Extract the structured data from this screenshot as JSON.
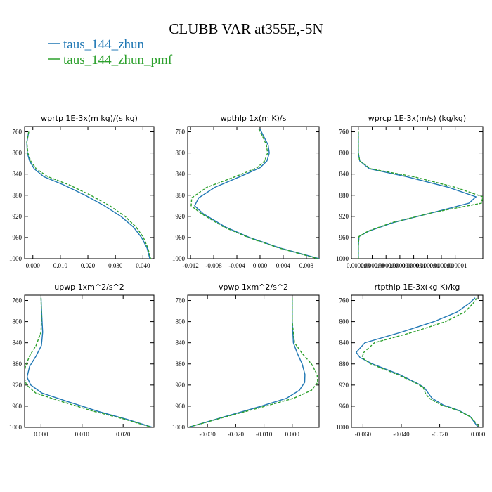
{
  "figure": {
    "title": "CLUBB VAR at355E,-5N",
    "legend": [
      {
        "label": "taus_144_zhun",
        "color": "#1f77b4"
      },
      {
        "label": "taus_144_zhun_pmf",
        "color": "#2ca02c"
      }
    ]
  },
  "chart_data": [
    {
      "type": "line",
      "title": "wprtp   1E-3x(m kg)/(s kg)",
      "xlim": [
        -0.003,
        0.044
      ],
      "ylim": [
        1000,
        750
      ],
      "xticks": [
        0.0,
        0.01,
        0.02,
        0.03,
        0.04
      ],
      "xtick_labels": [
        "0.000",
        "0.010",
        "0.020",
        "0.030",
        "0.040"
      ],
      "yticks": [
        760,
        800,
        840,
        880,
        920,
        960,
        1000
      ],
      "ytick_labels": [
        "760",
        "800",
        "840",
        "880",
        "920",
        "960",
        "1000"
      ],
      "y": [
        760,
        780,
        800,
        815,
        830,
        845,
        860,
        880,
        900,
        920,
        940,
        960,
        980,
        1000
      ],
      "series": [
        {
          "name": "taus_144_zhun",
          "color": "#1f77b4",
          "dash": false,
          "x": [
            -0.0015,
            -0.0022,
            -0.002,
            -0.0012,
            0.0005,
            0.004,
            0.011,
            0.019,
            0.026,
            0.032,
            0.0365,
            0.0395,
            0.0415,
            0.0425
          ]
        },
        {
          "name": "taus_144_zhun_pmf",
          "color": "#2ca02c",
          "dash": true,
          "x": [
            -0.0015,
            -0.0022,
            -0.0018,
            -0.0008,
            0.0012,
            0.0055,
            0.013,
            0.021,
            0.028,
            0.0335,
            0.0375,
            0.0402,
            0.0418,
            0.0428
          ]
        }
      ]
    },
    {
      "type": "line",
      "title": "wpthlp   1x(m K)/s",
      "xlim": [
        -0.0125,
        0.0102
      ],
      "ylim": [
        1000,
        750
      ],
      "xticks": [
        -0.012,
        -0.008,
        -0.004,
        0.0,
        0.004,
        0.008
      ],
      "xtick_labels": [
        "-0.012",
        "-0.008",
        "-0.004",
        "0.000",
        "0.004",
        "0.008"
      ],
      "yticks": [
        760,
        800,
        840,
        880,
        920,
        960,
        1000
      ],
      "ytick_labels": [
        "760",
        "800",
        "840",
        "880",
        "920",
        "960",
        "1000"
      ],
      "y": [
        755,
        770,
        785,
        800,
        815,
        828,
        845,
        865,
        885,
        900,
        915,
        940,
        960,
        980,
        1000
      ],
      "series": [
        {
          "name": "taus_144_zhun",
          "color": "#1f77b4",
          "dash": false,
          "x": [
            0.0,
            0.0007,
            0.0014,
            0.0016,
            0.0012,
            0.0,
            -0.0035,
            -0.0078,
            -0.0106,
            -0.0113,
            -0.0098,
            -0.006,
            -0.0018,
            0.0035,
            0.0102
          ]
        },
        {
          "name": "taus_144_zhun_pmf",
          "color": "#2ca02c",
          "dash": true,
          "x": [
            -0.0002,
            0.0005,
            0.0011,
            0.0013,
            0.0008,
            -0.0005,
            -0.0043,
            -0.0092,
            -0.0118,
            -0.0119,
            -0.0101,
            -0.0063,
            -0.002,
            0.0033,
            0.01
          ]
        }
      ]
    },
    {
      "type": "line",
      "title": "wprcp   1E-3x(m/s) (kg/kg)",
      "xlim": [
        -1e-07,
        1.8e-06
      ],
      "ylim": [
        1000,
        750
      ],
      "xticks": [
        0.0,
        2e-07,
        4e-07,
        6e-07,
        8e-07,
        1e-06,
        1.2e-06,
        1.4e-06
      ],
      "xtick_labels": [
        "0.000000",
        "0.000000",
        "0.000000",
        "0.000000",
        "0.000001",
        "0.000001",
        "0.000001",
        "0.000001"
      ],
      "yticks": [
        760,
        800,
        840,
        880,
        920,
        960,
        1000
      ],
      "ytick_labels": [
        "760",
        "800",
        "840",
        "880",
        "920",
        "960",
        "1000"
      ],
      "y": [
        760,
        800,
        815,
        830,
        845,
        865,
        883,
        895,
        912,
        932,
        948,
        958,
        975,
        1000
      ],
      "series": [
        {
          "name": "taus_144_zhun",
          "color": "#1f77b4",
          "dash": false,
          "x": [
            0.0,
            0.0,
            2e-08,
            1.6e-07,
            7e-07,
            1.3e-06,
            1.7e-06,
            1.6e-06,
            1.1e-06,
            5e-07,
            1.5e-07,
            1e-08,
            0.0,
            0.0
          ]
        },
        {
          "name": "taus_144_zhun_pmf",
          "color": "#2ca02c",
          "dash": true,
          "x": [
            0.0,
            0.0,
            2e-08,
            1.8e-07,
            8e-07,
            1.4e-06,
            1.8e-06,
            1.78e-06,
            1.1e-06,
            4.8e-07,
            1.4e-07,
            1e-08,
            0.0,
            0.0
          ]
        }
      ]
    },
    {
      "type": "line",
      "title": "upwp   1xm^2/s^2",
      "xlim": [
        -0.004,
        0.0275
      ],
      "ylim": [
        1000,
        750
      ],
      "xticks": [
        0.0,
        0.01,
        0.02
      ],
      "xtick_labels": [
        "0.000",
        "0.010",
        "0.020"
      ],
      "yticks": [
        760,
        800,
        840,
        880,
        920,
        960,
        1000
      ],
      "ytick_labels": [
        "760",
        "800",
        "840",
        "880",
        "920",
        "960",
        "1000"
      ],
      "y": [
        755,
        790,
        820,
        845,
        865,
        885,
        905,
        920,
        935,
        950,
        970,
        985,
        1000
      ],
      "series": [
        {
          "name": "taus_144_zhun",
          "color": "#1f77b4",
          "dash": false,
          "x": [
            0.0,
            0.0002,
            0.0004,
            0.0001,
            -0.0012,
            -0.0028,
            -0.0034,
            -0.0025,
            0.0002,
            0.006,
            0.014,
            0.021,
            0.0272
          ]
        },
        {
          "name": "taus_144_zhun_pmf",
          "color": "#2ca02c",
          "dash": true,
          "x": [
            0.0,
            0.0001,
            0.0,
            -0.0012,
            -0.0028,
            -0.0038,
            -0.0042,
            -0.0035,
            -0.0013,
            0.0045,
            0.013,
            0.0205,
            0.027
          ]
        }
      ]
    },
    {
      "type": "line",
      "title": "vpwp   1xm^2/s^2",
      "xlim": [
        -0.037,
        0.0095
      ],
      "ylim": [
        1000,
        750
      ],
      "xticks": [
        -0.03,
        -0.02,
        -0.01,
        0.0
      ],
      "xtick_labels": [
        "-0.030",
        "-0.020",
        "-0.010",
        "0.000"
      ],
      "yticks": [
        760,
        800,
        840,
        880,
        920,
        960,
        1000
      ],
      "ytick_labels": [
        "760",
        "800",
        "840",
        "880",
        "920",
        "960",
        "1000"
      ],
      "y": [
        755,
        800,
        840,
        860,
        880,
        900,
        915,
        930,
        945,
        960,
        980,
        1000
      ],
      "series": [
        {
          "name": "taus_144_zhun",
          "color": "#1f77b4",
          "dash": false,
          "x": [
            0.0,
            0.0,
            0.0004,
            0.0018,
            0.0035,
            0.0045,
            0.0044,
            0.0025,
            -0.002,
            -0.011,
            -0.024,
            -0.0368
          ]
        },
        {
          "name": "taus_144_zhun_pmf",
          "color": "#2ca02c",
          "dash": true,
          "x": [
            0.0,
            0.0,
            0.0008,
            0.0035,
            0.0068,
            0.0088,
            0.009,
            0.0068,
            0.0005,
            -0.0095,
            -0.0235,
            -0.0368
          ]
        }
      ]
    },
    {
      "type": "line",
      "title": "rtpthlp   1E-3x(kg K)/kg",
      "xlim": [
        -0.066,
        0.0025
      ],
      "ylim": [
        1000,
        750
      ],
      "xticks": [
        -0.06,
        -0.04,
        -0.02,
        0.0
      ],
      "xtick_labels": [
        "-0.060",
        "-0.040",
        "-0.020",
        "0.000"
      ],
      "yticks": [
        760,
        800,
        840,
        880,
        920,
        960,
        1000
      ],
      "ytick_labels": [
        "760",
        "800",
        "840",
        "880",
        "920",
        "960",
        "1000"
      ],
      "y": [
        755,
        765,
        782,
        800,
        820,
        840,
        858,
        868,
        880,
        900,
        918,
        925,
        935,
        945,
        958,
        968,
        980,
        990,
        1000
      ],
      "series": [
        {
          "name": "taus_144_zhun",
          "color": "#1f77b4",
          "dash": false,
          "x": [
            -0.0015,
            -0.0045,
            -0.011,
            -0.023,
            -0.04,
            -0.059,
            -0.0635,
            -0.0615,
            -0.055,
            -0.041,
            -0.031,
            -0.028,
            -0.026,
            -0.024,
            -0.018,
            -0.01,
            -0.004,
            -0.002,
            0.0
          ]
        },
        {
          "name": "taus_144_zhun_pmf",
          "color": "#2ca02c",
          "dash": true,
          "x": [
            -0.0005,
            -0.0025,
            -0.007,
            -0.017,
            -0.034,
            -0.054,
            -0.0595,
            -0.0605,
            -0.056,
            -0.042,
            -0.0315,
            -0.0285,
            -0.0275,
            -0.0255,
            -0.019,
            -0.0105,
            -0.004,
            -0.0015,
            0.001
          ]
        }
      ]
    }
  ]
}
